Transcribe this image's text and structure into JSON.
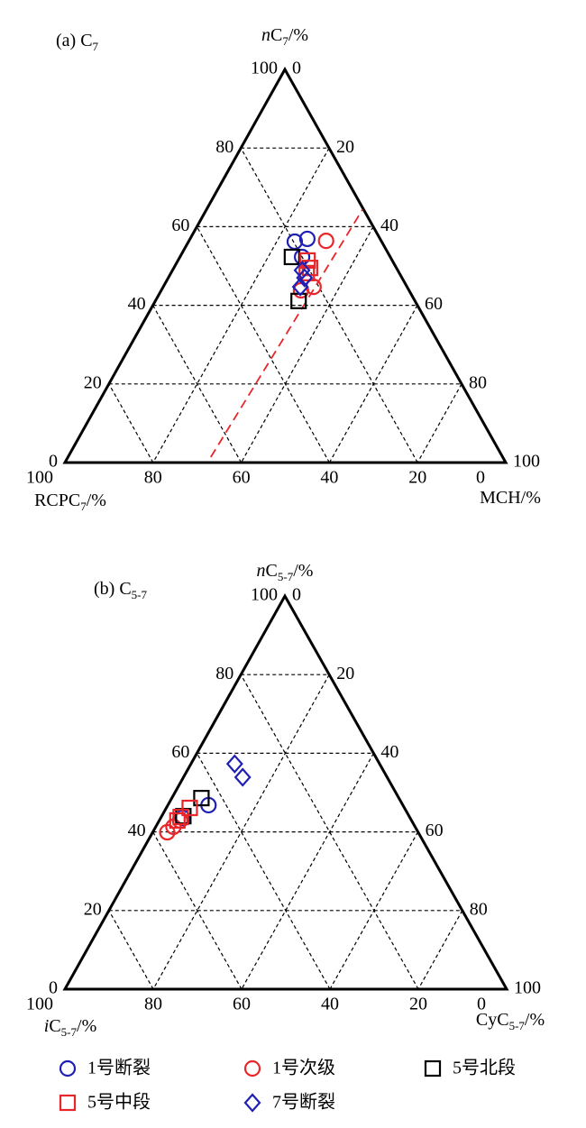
{
  "chart_data": [
    {
      "type": "ternary",
      "title": [
        {
          "text": "(a) C"
        },
        {
          "text": "7",
          "style": "sub"
        }
      ],
      "axes": {
        "top": {
          "label": [
            {
              "text": "n",
              "style": "italic"
            },
            {
              "text": "C"
            },
            {
              "text": "7",
              "style": "sub"
            },
            {
              "text": "/%"
            }
          ],
          "ticks": [
            0,
            20,
            40,
            60,
            80,
            100
          ]
        },
        "right": {
          "label": [
            {
              "text": "MCH/%"
            }
          ],
          "ticks": [
            0,
            20,
            40,
            60,
            80,
            100
          ]
        },
        "bottom": {
          "label": [
            {
              "text": "RCPC"
            },
            {
              "text": "7",
              "style": "sub"
            },
            {
              "text": "/%"
            }
          ],
          "ticks": [
            0,
            20,
            40,
            60,
            80,
            100
          ]
        }
      },
      "grid": true,
      "series": [
        {
          "values": [
            [
              56.2,
              24.1,
              19.7
            ],
            [
              56.9,
              26.6,
              16.5
            ],
            [
              52.3,
              27.7,
              20.0
            ]
          ]
        },
        {
          "values": [
            [
              56.4,
              31.1,
              12.5
            ],
            [
              44.7,
              34.1,
              21.2
            ],
            [
              43.8,
              31.7,
              24.5
            ]
          ]
        },
        {
          "values": [
            [
              52.3,
              25.4,
              22.3
            ],
            [
              41.1,
              32.5,
              26.4
            ]
          ]
        },
        {
          "values": [
            [
              51.4,
              29.4,
              19.2
            ],
            [
              49.5,
              30.9,
              19.6
            ],
            [
              48.2,
              30.8,
              21.0
            ]
          ]
        },
        {
          "values": [
            [
              48.9,
              29.4,
              21.7
            ],
            [
              47.0,
              30.9,
              22.1
            ],
            [
              44.7,
              31.1,
              24.2
            ]
          ]
        }
      ],
      "reference_line": {
        "color": "#e8262a",
        "points": [
          [
            1.4,
            32.4,
            66.2
          ],
          [
            64.4,
            35.4,
            0.2
          ]
        ]
      }
    },
    {
      "type": "ternary",
      "title": [
        {
          "text": "(b) C"
        },
        {
          "text": "5-7",
          "style": "sub"
        }
      ],
      "axes": {
        "top": {
          "label": [
            {
              "text": "n",
              "style": "italic"
            },
            {
              "text": "C"
            },
            {
              "text": "5-7",
              "style": "sub"
            },
            {
              "text": "/%"
            }
          ],
          "ticks": [
            0,
            20,
            40,
            60,
            80,
            100
          ]
        },
        "right": {
          "label": [
            {
              "text": "CyC"
            },
            {
              "text": "5-7",
              "style": "sub"
            },
            {
              "text": "/%"
            }
          ],
          "ticks": [
            0,
            20,
            40,
            60,
            80,
            100
          ]
        },
        "bottom": {
          "label": [
            {
              "text": "i",
              "style": "italic"
            },
            {
              "text": "C"
            },
            {
              "text": "5-7",
              "style": "sub"
            },
            {
              "text": "/%"
            }
          ],
          "ticks": [
            0,
            20,
            40,
            60,
            80,
            100
          ]
        }
      },
      "grid": true,
      "series": [
        {
          "values": [
            [
              46.8,
              9.2,
              44.0
            ],
            [
              43.6,
              4.9,
              51.5
            ]
          ]
        },
        {
          "values": [
            [
              39.9,
              3.3,
              56.8
            ],
            [
              41.3,
              4.0,
              54.7
            ],
            [
              42.9,
              4.7,
              52.4
            ]
          ]
        },
        {
          "values": [
            [
              48.6,
              6.7,
              44.7
            ],
            [
              44.0,
              4.9,
              51.1
            ]
          ]
        },
        {
          "values": [
            [
              46.1,
              5.3,
              48.6
            ],
            [
              43.8,
              4.4,
              51.8
            ],
            [
              42.9,
              4.1,
              53.0
            ]
          ]
        },
        {
          "values": [
            [
              57.3,
              9.9,
              32.8
            ],
            [
              53.9,
              13.4,
              32.7
            ]
          ]
        }
      ]
    }
  ],
  "legend": {
    "position": "bottom",
    "items": [
      {
        "name": "1号断裂",
        "color": "#1f1fb4",
        "marker": "circle"
      },
      {
        "name": "1号次级",
        "color": "#e8262a",
        "marker": "circle"
      },
      {
        "name": "5号北段",
        "color": "#000000",
        "marker": "square"
      },
      {
        "name": "5号中段",
        "color": "#e8262a",
        "marker": "square"
      },
      {
        "name": "7号断裂",
        "color": "#1f1fb4",
        "marker": "diamond"
      }
    ]
  }
}
